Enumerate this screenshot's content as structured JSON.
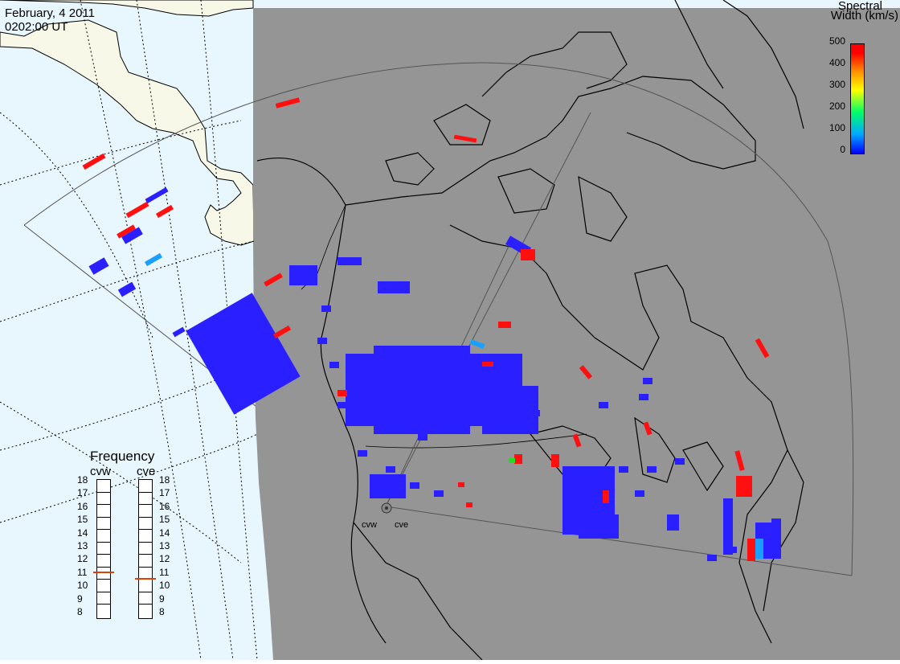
{
  "header": {
    "date": "February, 4 2011",
    "time": "0202:00 UT"
  },
  "colorbar": {
    "title_line1": "Spectral",
    "title_line2": "Width (km/s)",
    "ticks": [
      "500",
      "400",
      "300",
      "200",
      "100",
      "0"
    ]
  },
  "frequency_panel": {
    "title": "Frequency",
    "radars": [
      {
        "name": "cvw",
        "selected_mhz": 11
      },
      {
        "name": "cve",
        "selected_mhz": 10.5
      }
    ],
    "scale": [
      "18",
      "17",
      "16",
      "15",
      "14",
      "13",
      "12",
      "11",
      "10",
      "9",
      "8"
    ]
  },
  "sites": [
    {
      "name": "cvw"
    },
    {
      "name": "cve"
    }
  ],
  "colors": {
    "ocean": "#e8f6fd",
    "land_day": "#f8f8e8",
    "night": "#959595",
    "scatter_low": "#0000ff",
    "scatter_high": "#ff0000"
  }
}
